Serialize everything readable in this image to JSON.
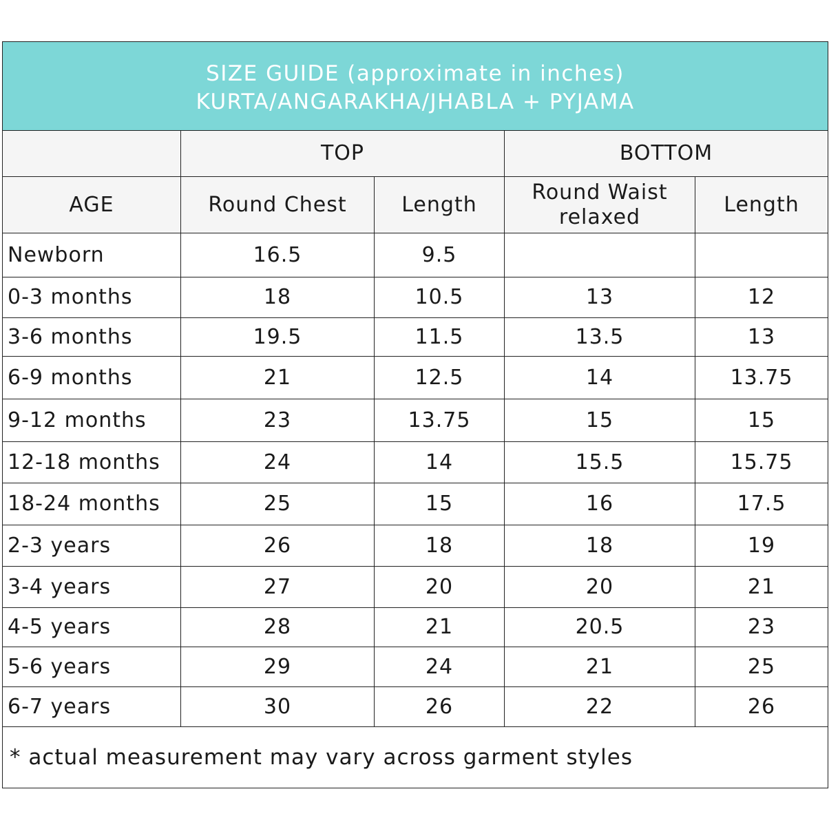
{
  "title": {
    "line1": "SIZE GUIDE (approximate in inches)",
    "line2": "KURTA/ANGARAKHA/JHABLA + PYJAMA"
  },
  "groups": {
    "top": "TOP",
    "bottom": "BOTTOM"
  },
  "columns": {
    "age": "AGE",
    "round_chest": "Round Chest",
    "top_length": "Length",
    "round_waist": "Round Waist relaxed",
    "bottom_length": "Length"
  },
  "rows": [
    {
      "age": "Newborn",
      "chest": "16.5",
      "top_length": "9.5",
      "waist": "",
      "bottom_length": ""
    },
    {
      "age": "0-3 months",
      "chest": "18",
      "top_length": "10.5",
      "waist": "13",
      "bottom_length": "12"
    },
    {
      "age": "3-6 months",
      "chest": "19.5",
      "top_length": "11.5",
      "waist": "13.5",
      "bottom_length": "13"
    },
    {
      "age": "6-9 months",
      "chest": "21",
      "top_length": "12.5",
      "waist": "14",
      "bottom_length": "13.75"
    },
    {
      "age": "9-12 months",
      "chest": "23",
      "top_length": "13.75",
      "waist": "15",
      "bottom_length": "15"
    },
    {
      "age": "12-18 months",
      "chest": "24",
      "top_length": "14",
      "waist": "15.5",
      "bottom_length": "15.75"
    },
    {
      "age": "18-24 months",
      "chest": "25",
      "top_length": "15",
      "waist": "16",
      "bottom_length": "17.5"
    },
    {
      "age": "2-3 years",
      "chest": "26",
      "top_length": "18",
      "waist": "18",
      "bottom_length": "19"
    },
    {
      "age": "3-4 years",
      "chest": "27",
      "top_length": "20",
      "waist": "20",
      "bottom_length": "21"
    },
    {
      "age": "4-5 years",
      "chest": "28",
      "top_length": "21",
      "waist": "20.5",
      "bottom_length": "23"
    },
    {
      "age": "5-6 years",
      "chest": "29",
      "top_length": "24",
      "waist": "21",
      "bottom_length": "25"
    },
    {
      "age": "6-7 years",
      "chest": "30",
      "top_length": "26",
      "waist": "22",
      "bottom_length": "26"
    }
  ],
  "note": "* actual measurement may vary across garment styles",
  "colors": {
    "header_teal": "#7dd7d7",
    "header_grey": "#f5f5f5",
    "border": "#222222"
  }
}
